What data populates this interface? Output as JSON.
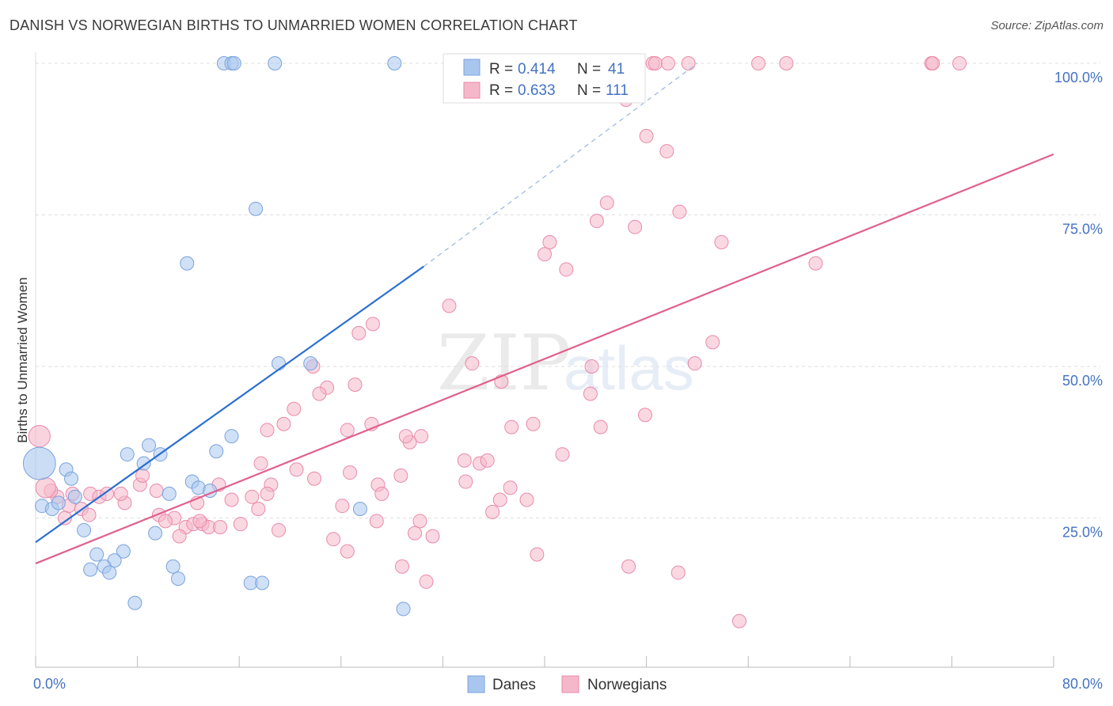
{
  "header": {
    "title": "DANISH VS NORWEGIAN BIRTHS TO UNMARRIED WOMEN CORRELATION CHART",
    "source": "Source: ZipAtlas.com"
  },
  "watermark": {
    "zip": "ZIP",
    "atlas": "atlas"
  },
  "colors": {
    "danes": "#a9c6ef",
    "danes_stroke": "#7aa3dc",
    "danes_line": "#2a6fd1",
    "norwegians": "#f5b8ca",
    "norwegians_stroke": "#e98aaa",
    "norwegians_line": "#e0608d",
    "tick": "#4472c4"
  },
  "chart_data": {
    "type": "scatter",
    "title": "DANISH VS NORWEGIAN BIRTHS TO UNMARRIED WOMEN CORRELATION CHART",
    "xlabel": "",
    "ylabel": "Births to Unmarried Women",
    "xlim": [
      0,
      80
    ],
    "ylim": [
      0,
      103
    ],
    "x_tick_labels": [
      {
        "value": 0,
        "label": "0.0%"
      },
      {
        "value": 80,
        "label": "80.0%"
      }
    ],
    "y_tick_labels": [
      {
        "value": 25,
        "label": "25.0%"
      },
      {
        "value": 50,
        "label": "50.0%"
      },
      {
        "value": 75,
        "label": "75.0%"
      },
      {
        "value": 100,
        "label": "100.0%"
      }
    ],
    "grid": true,
    "legend": [
      {
        "name": "Danes",
        "r_label": "R =",
        "r": "0.414",
        "n_label": "N =",
        "n": "41"
      },
      {
        "name": "Norwegians",
        "r_label": "R =",
        "r": "0.633",
        "n_label": "N =",
        "n": "111"
      }
    ],
    "series": [
      {
        "name": "Danes",
        "trend": {
          "x0": 0,
          "y0": 21,
          "x1": 30.5,
          "y1": 66.5,
          "dash_to_x": 52,
          "dash_to_y": 100
        },
        "points": [
          [
            14.8,
            100
          ],
          [
            15.4,
            100
          ],
          [
            15.6,
            100
          ],
          [
            18.8,
            100
          ],
          [
            28.2,
            100
          ],
          [
            17.3,
            76
          ],
          [
            11.9,
            67
          ],
          [
            19.1,
            50.5
          ],
          [
            21.6,
            50.5
          ],
          [
            8.9,
            37
          ],
          [
            7.2,
            35.5
          ],
          [
            14.2,
            36
          ],
          [
            15.4,
            38.5
          ],
          [
            8.5,
            34
          ],
          [
            9.8,
            35.5
          ],
          [
            2.4,
            33
          ],
          [
            2.8,
            31.5
          ],
          [
            12.3,
            31
          ],
          [
            12.8,
            30
          ],
          [
            13.7,
            29.5
          ],
          [
            10.5,
            29
          ],
          [
            3.1,
            28.5
          ],
          [
            0.5,
            27
          ],
          [
            1.3,
            26.5
          ],
          [
            1.8,
            27.5
          ],
          [
            3.8,
            23
          ],
          [
            9.4,
            22.5
          ],
          [
            25.5,
            26.5
          ],
          [
            4.8,
            19
          ],
          [
            6.9,
            19.5
          ],
          [
            6.2,
            18
          ],
          [
            4.3,
            16.5
          ],
          [
            5.4,
            17
          ],
          [
            5.8,
            16
          ],
          [
            10.8,
            17
          ],
          [
            11.2,
            15
          ],
          [
            16.9,
            14.3
          ],
          [
            17.8,
            14.3
          ],
          [
            7.8,
            11
          ],
          [
            28.9,
            10
          ]
        ],
        "big_points": [
          [
            0.3,
            34,
            2.4
          ]
        ]
      },
      {
        "name": "Norwegians",
        "trend": {
          "x0": 0,
          "y0": 17.5,
          "x1": 80,
          "y1": 85
        },
        "points": [
          [
            48.5,
            100
          ],
          [
            48.7,
            100
          ],
          [
            49.7,
            100
          ],
          [
            51.3,
            100
          ],
          [
            56.8,
            100
          ],
          [
            59,
            100
          ],
          [
            70.4,
            100
          ],
          [
            70.5,
            100
          ],
          [
            72.6,
            100
          ],
          [
            46.4,
            94
          ],
          [
            48,
            88
          ],
          [
            49.6,
            85.5
          ],
          [
            44.9,
            77
          ],
          [
            44.1,
            74
          ],
          [
            47.1,
            73
          ],
          [
            50.6,
            75.5
          ],
          [
            40.4,
            70.5
          ],
          [
            40,
            68.5
          ],
          [
            41.7,
            66
          ],
          [
            53.9,
            70.5
          ],
          [
            61.3,
            67
          ],
          [
            32.5,
            60
          ],
          [
            25.4,
            55.5
          ],
          [
            53.2,
            54
          ],
          [
            26.5,
            57
          ],
          [
            34.3,
            50.5
          ],
          [
            43.7,
            50
          ],
          [
            51.8,
            50.5
          ],
          [
            21.8,
            50
          ],
          [
            36.6,
            47.5
          ],
          [
            22.9,
            46.5
          ],
          [
            25.1,
            47
          ],
          [
            22.3,
            45.5
          ],
          [
            43.6,
            45.5
          ],
          [
            37.4,
            40
          ],
          [
            19.5,
            40.5
          ],
          [
            26.4,
            40.5
          ],
          [
            18.2,
            39.5
          ],
          [
            44.4,
            40
          ],
          [
            47.9,
            42
          ],
          [
            20.3,
            43
          ],
          [
            24.5,
            39.5
          ],
          [
            39.1,
            40.5
          ],
          [
            30.3,
            38.5
          ],
          [
            33.7,
            34.5
          ],
          [
            34.9,
            34
          ],
          [
            35.5,
            34.5
          ],
          [
            41.4,
            35.5
          ],
          [
            29.4,
            37.5
          ],
          [
            29.1,
            38.5
          ],
          [
            17.7,
            34
          ],
          [
            20.5,
            33
          ],
          [
            24.7,
            32.5
          ],
          [
            28.7,
            32
          ],
          [
            18.5,
            30.5
          ],
          [
            14.4,
            30.5
          ],
          [
            21.9,
            31.5
          ],
          [
            33.8,
            31
          ],
          [
            26.9,
            30.5
          ],
          [
            18.2,
            29
          ],
          [
            27.2,
            29
          ],
          [
            37.3,
            30
          ],
          [
            24.1,
            27
          ],
          [
            38.6,
            28
          ],
          [
            36.5,
            28
          ],
          [
            17,
            28.5
          ],
          [
            15.4,
            28
          ],
          [
            12.7,
            27.5
          ],
          [
            2.6,
            27
          ],
          [
            1.7,
            28.5
          ],
          [
            2.9,
            29
          ],
          [
            3.6,
            26.5
          ],
          [
            1.2,
            29.5
          ],
          [
            4.3,
            29
          ],
          [
            7,
            27.5
          ],
          [
            8.2,
            30.5
          ],
          [
            9.5,
            29.5
          ],
          [
            8.4,
            32
          ],
          [
            5,
            28.5
          ],
          [
            6.7,
            29
          ],
          [
            5.6,
            29
          ],
          [
            9.7,
            25.5
          ],
          [
            10.9,
            25
          ],
          [
            11.8,
            23.5
          ],
          [
            12.4,
            24
          ],
          [
            13.1,
            24
          ],
          [
            13.6,
            23.5
          ],
          [
            16.1,
            24
          ],
          [
            10.2,
            24.5
          ],
          [
            14.5,
            23.5
          ],
          [
            12.9,
            24.5
          ],
          [
            11.3,
            22
          ],
          [
            17.5,
            26.5
          ],
          [
            2.3,
            25
          ],
          [
            4.2,
            25.5
          ],
          [
            30.2,
            24.5
          ],
          [
            29.8,
            22.5
          ],
          [
            31.2,
            22
          ],
          [
            26.8,
            24.5
          ],
          [
            23.4,
            21.5
          ],
          [
            39.4,
            19
          ],
          [
            28.8,
            17
          ],
          [
            46.6,
            17
          ],
          [
            50.5,
            16
          ],
          [
            35.9,
            26
          ],
          [
            24.5,
            19.5
          ],
          [
            19.1,
            23
          ],
          [
            30.7,
            14.5
          ],
          [
            55.3,
            8
          ]
        ],
        "big_points": [
          [
            0.3,
            38.5,
            1.6
          ],
          [
            0.8,
            30,
            1.5
          ]
        ]
      }
    ]
  }
}
